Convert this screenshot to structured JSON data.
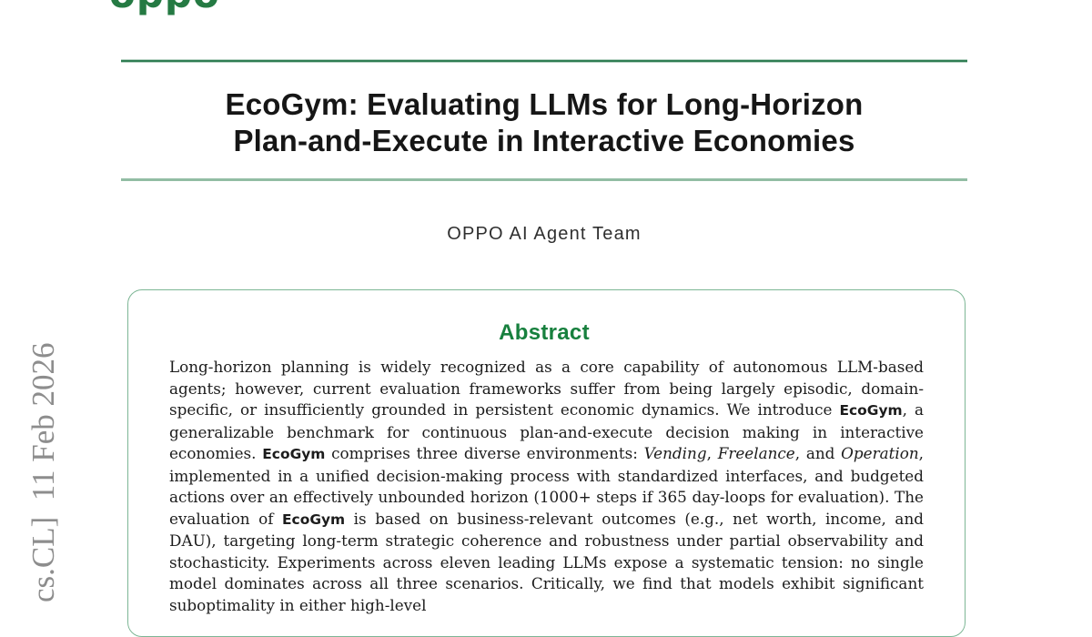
{
  "page": {
    "background": "#ffffff",
    "brand_green": "#257a43",
    "heading_green": "#17803e",
    "rule_top_color": "#2e7d52",
    "rule_bottom_color": "#92bda4",
    "box_border_color": "#7db695",
    "watermark_gray": "#8d8d8d"
  },
  "header": {
    "logo_text": "oppo",
    "title_line1": "EcoGym: Evaluating LLMs for Long-Horizon",
    "title_line2": "Plan-and-Execute in Interactive Economies",
    "authors": "OPPO AI Agent Team"
  },
  "sidebar": {
    "arxiv_watermark": "cs.CL]  11 Feb 2026"
  },
  "abstract": {
    "heading": "Abstract",
    "paragraph_segments": [
      {
        "t": "Long-horizon planning is widely recognized as a core capability of autonomous LLM-based agents; however, current evaluation frameworks suffer from being largely episodic, domain-specific, or insufficiently grounded in persistent economic dynamics. We introduce "
      },
      {
        "t": "EcoGym",
        "b": true
      },
      {
        "t": ", a generalizable benchmark for continuous plan-and-execute decision making in interactive economies. "
      },
      {
        "t": "EcoGym",
        "b": true
      },
      {
        "t": " comprises three diverse environments: "
      },
      {
        "t": "Vending",
        "i": true
      },
      {
        "t": ", "
      },
      {
        "t": "Freelance",
        "i": true
      },
      {
        "t": ", and "
      },
      {
        "t": "Operation",
        "i": true
      },
      {
        "t": ", implemented in a unified decision-making process with standardized interfaces, and budgeted actions over an effectively unbounded horizon (1000+ steps if 365 day-loops for evaluation). The evaluation of "
      },
      {
        "t": "EcoGym",
        "b": true
      },
      {
        "t": " is based on business-relevant outcomes (e.g., net worth, income, and DAU), targeting long-term strategic coherence and robustness under partial observability and stochasticity. Experiments across eleven leading LLMs expose a systematic tension: no single model dominates across all three scenarios. Critically, we find that models exhibit significant suboptimality in either high-level"
      }
    ]
  }
}
